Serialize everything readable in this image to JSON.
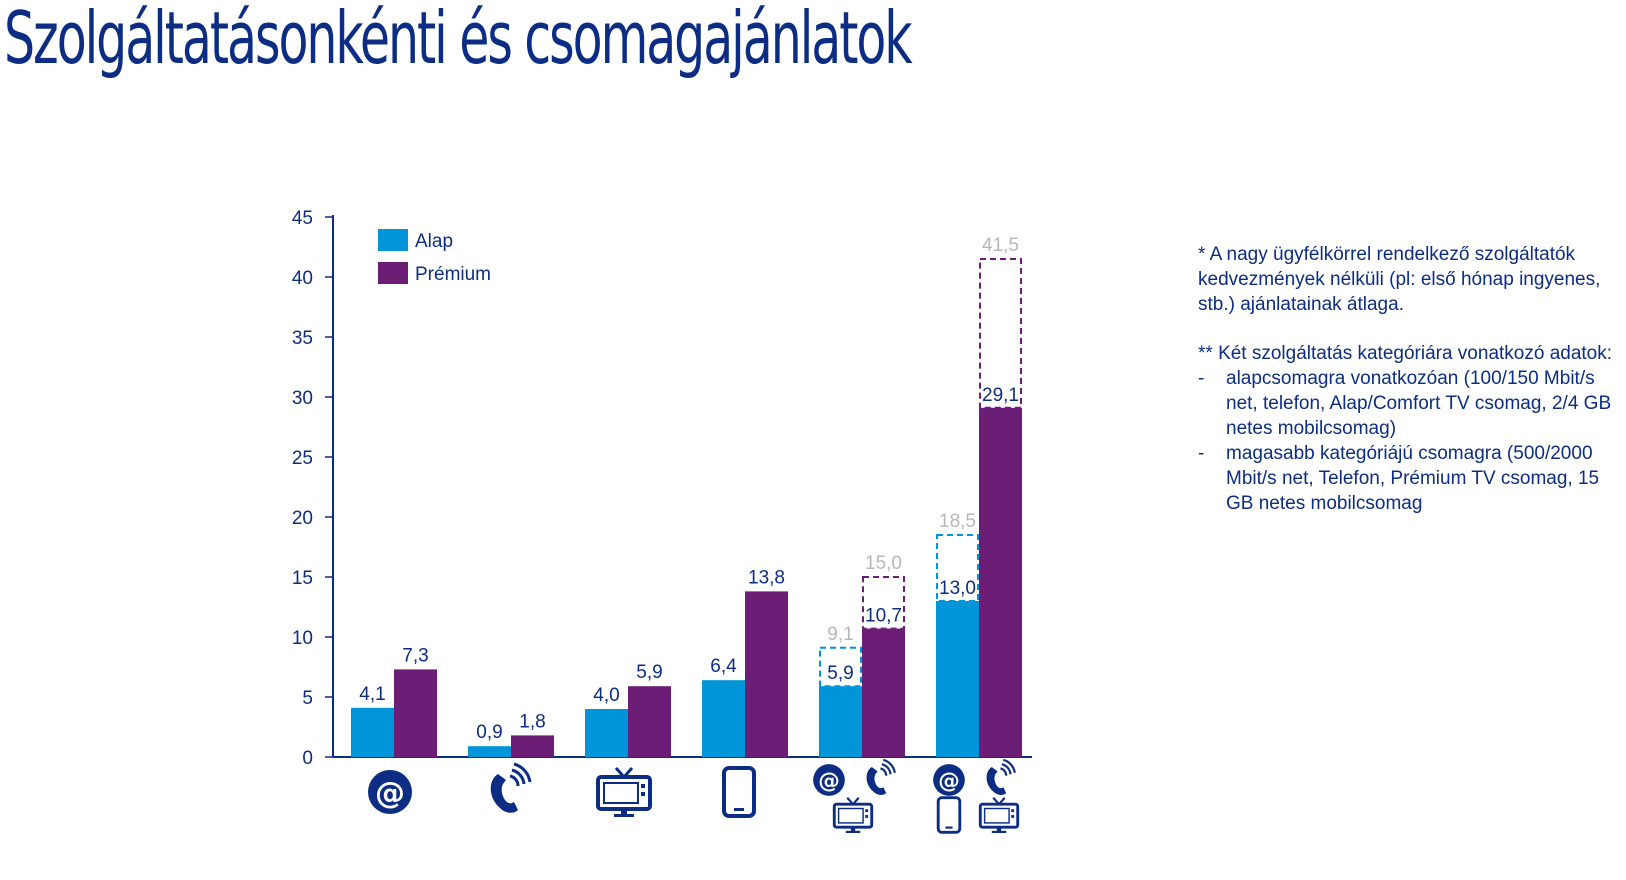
{
  "title": "Szolgáltatásonkénti és csomagajánlatok",
  "legend": [
    {
      "label": "Alap",
      "color": "#0095d9"
    },
    {
      "label": "Prémium",
      "color": "#6c1e76"
    }
  ],
  "notes": {
    "note1": "* A nagy ügyfélkörrel rendelkező szolgáltatók kedvezmények nélküli (pl: első hónap ingyenes, stb.) ajánlatainak átlaga.",
    "note2_intro": "** Két szolgáltatás kategóriára vonatkozó adatok:",
    "bullets": [
      "alapcsomagra vonatkozóan (100/150 Mbit/s net, telefon, Alap/Comfort TV csomag, 2/4 GB netes mobilcsomag)",
      "magasabb kategóriájú csomagra (500/2000 Mbit/s net, Telefon, Prémium TV csomag, 15 GB netes mobilcsomag"
    ]
  },
  "colors": {
    "alap": "#0095d9",
    "premium": "#6c1e76",
    "text": "#0c2d83",
    "reference_label": "#b8b8b8"
  },
  "chart_data": {
    "type": "bar",
    "ylim": [
      0,
      45
    ],
    "yticks": [
      0,
      5,
      10,
      15,
      20,
      25,
      30,
      35,
      40,
      45
    ],
    "legend_position": "top-left",
    "grid": false,
    "categories": [
      {
        "icons": [
          "at-icon"
        ]
      },
      {
        "icons": [
          "phone-icon"
        ]
      },
      {
        "icons": [
          "tv-icon"
        ]
      },
      {
        "icons": [
          "mobile-icon"
        ]
      },
      {
        "icons": [
          "at-icon",
          "phone-icon",
          "tv-icon"
        ]
      },
      {
        "icons": [
          "at-icon",
          "phone-icon",
          "mobile-icon",
          "tv-icon"
        ]
      }
    ],
    "series": [
      {
        "name": "Alap",
        "values": [
          4.1,
          0.9,
          4.0,
          6.4,
          5.9,
          13.0
        ],
        "labels": [
          "4,1",
          "0,9",
          "4,0",
          "6,4",
          "5,9",
          "13,0"
        ],
        "reference_values": [
          null,
          null,
          null,
          null,
          9.1,
          18.5
        ],
        "reference_labels": [
          null,
          null,
          null,
          null,
          "9,1",
          "18,5"
        ]
      },
      {
        "name": "Prémium",
        "values": [
          7.3,
          1.8,
          5.9,
          13.8,
          10.7,
          29.1
        ],
        "labels": [
          "7,3",
          "1,8",
          "5,9",
          "13,8",
          "10,7",
          "29,1"
        ],
        "reference_values": [
          null,
          null,
          null,
          null,
          15.0,
          41.5
        ],
        "reference_labels": [
          null,
          null,
          null,
          null,
          "15,0",
          "41,5"
        ]
      }
    ]
  }
}
